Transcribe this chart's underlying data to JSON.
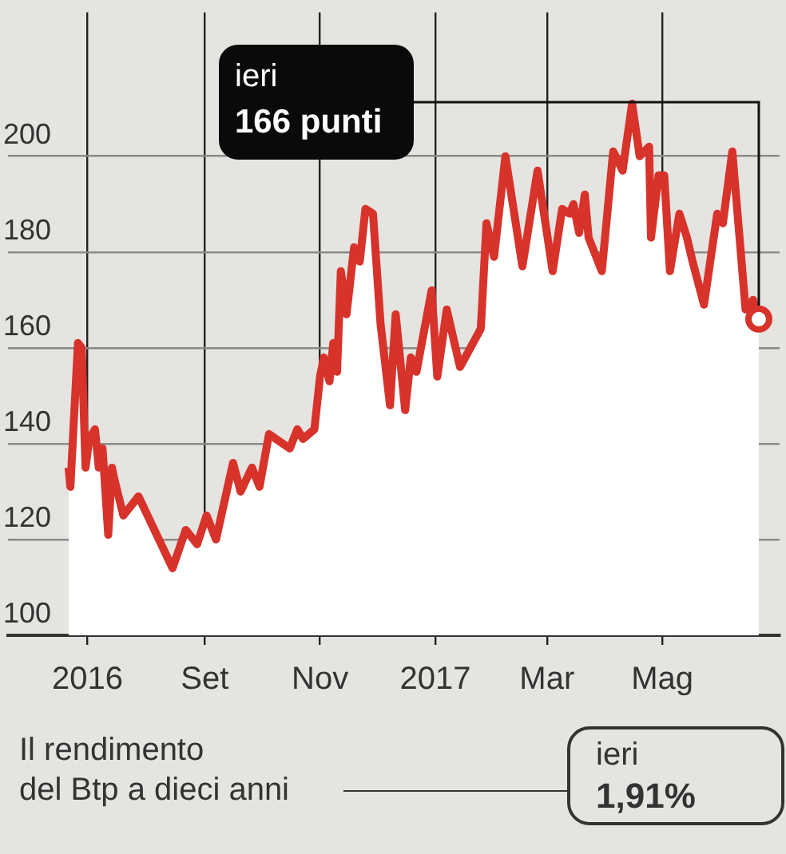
{
  "chart_data": {
    "type": "area",
    "x": [
      "2016-06-21",
      "2016-06-22",
      "2016-06-26",
      "2016-06-28",
      "2016-06-30",
      "2016-07-02",
      "2016-07-05",
      "2016-07-07",
      "2016-07-09",
      "2016-07-12",
      "2016-07-14",
      "2016-07-15",
      "2016-07-20",
      "2016-07-28",
      "2016-08-15",
      "2016-08-22",
      "2016-08-28",
      "2016-09-02",
      "2016-09-07",
      "2016-09-16",
      "2016-09-20",
      "2016-09-26",
      "2016-09-30",
      "2016-10-05",
      "2016-10-16",
      "2016-10-20",
      "2016-10-23",
      "2016-10-29",
      "2016-11-01",
      "2016-11-03",
      "2016-11-06",
      "2016-11-08",
      "2016-11-10",
      "2016-11-12",
      "2016-11-15",
      "2016-11-19",
      "2016-11-22",
      "2016-11-25",
      "2016-11-29",
      "2016-12-03",
      "2016-12-08",
      "2016-12-11",
      "2016-12-16",
      "2016-12-19",
      "2016-12-22",
      "2016-12-30",
      "2017-01-02",
      "2017-01-07",
      "2017-01-14",
      "2017-01-25",
      "2017-01-28",
      "2017-02-01",
      "2017-02-07",
      "2017-02-16",
      "2017-02-24",
      "2017-03-04",
      "2017-03-09",
      "2017-03-13",
      "2017-03-15",
      "2017-03-18",
      "2017-03-21",
      "2017-03-23",
      "2017-03-30",
      "2017-04-05",
      "2017-04-10",
      "2017-04-15",
      "2017-04-19",
      "2017-04-24",
      "2017-04-25",
      "2017-04-29",
      "2017-05-02",
      "2017-05-05",
      "2017-05-10",
      "2017-05-14",
      "2017-05-17",
      "2017-05-23",
      "2017-05-30",
      "2017-06-02",
      "2017-06-07",
      "2017-06-14",
      "2017-06-18",
      "2017-06-21"
    ],
    "series": [
      {
        "color": "#d7332b",
        "values": [
          135,
          131,
          161,
          160,
          135,
          141,
          143,
          135,
          139,
          121,
          135,
          133,
          125,
          129,
          114,
          122,
          119,
          125,
          120,
          136,
          130,
          135,
          131,
          142,
          139,
          143,
          141,
          143,
          154,
          158,
          153,
          161,
          155,
          176,
          167,
          181,
          178,
          189,
          188,
          165,
          148,
          167,
          147,
          158,
          155,
          172,
          154,
          168,
          156,
          164,
          186,
          179,
          200,
          177,
          197,
          176,
          189,
          188,
          190,
          184,
          192,
          183,
          176,
          201,
          197,
          211,
          200,
          202,
          183,
          196,
          196,
          176,
          188,
          183,
          178,
          169,
          188,
          186,
          201,
          168,
          170,
          166
        ]
      }
    ],
    "xlim": [
      "2016-05-20",
      "2017-07-02"
    ],
    "xticks": [
      {
        "value": "2016-07",
        "label": "2016"
      },
      {
        "value": "2016-09",
        "label": "Set"
      },
      {
        "value": "2016-11",
        "label": "Nov"
      },
      {
        "value": "2017-01",
        "label": "2017"
      },
      {
        "value": "2017-03",
        "label": "Mar"
      },
      {
        "value": "2017-05",
        "label": "Mag"
      }
    ],
    "ylim": [
      100,
      230
    ],
    "yticks": [
      100,
      120,
      140,
      160,
      180,
      200
    ],
    "grid": true,
    "annotations": [
      {
        "text": "ieri\n166 punti",
        "x": "2017-06-21",
        "y": 166
      },
      "Il rendimento\ndel Btp a dieci anni",
      "ieri\n1,91%"
    ]
  }
}
